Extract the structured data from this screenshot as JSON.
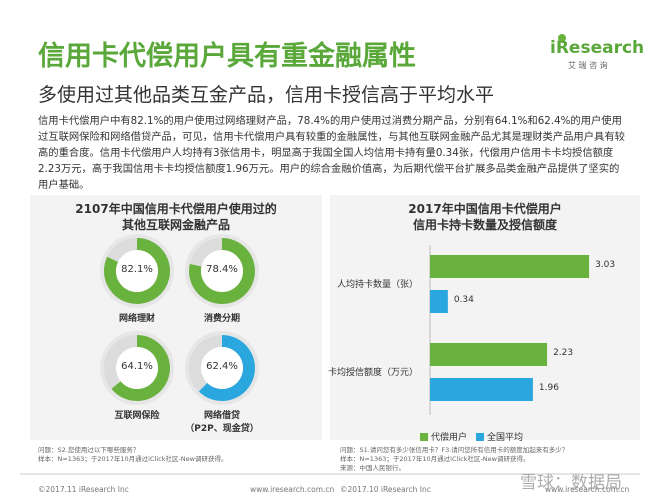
{
  "header": {
    "title": "信用卡代偿用户具有重金融属性",
    "subtitle": "多使用过其他品类互金产品，信用卡授信高于平均水平",
    "logo": "iResearch",
    "logo_cn": "艾 瑞 咨 询"
  },
  "body": "信用卡代偿用户中有82.1%的用户使用过网络理财产品，78.4%的用户使用过消费分期产品，分别有64.1%和62.4%的用户使用过互联网保险和网络借贷产品，可见，信用卡代偿用户具有较重的金融属性，与其他互联网金融产品尤其是理财类产品用户具有较高的重合度。信用卡代偿用户人均持有3张信用卡，明显高于我国全国人均信用卡持有量0.34张，代偿用户信用卡卡均授信额度2.23万元，高于我国信用卡卡均授信额度1.96万元。用户的综合金融价值高，为后期代偿平台扩展多品类金融产品提供了坚实的用户基础。",
  "chart_data": [
    {
      "type": "donut",
      "title": "2107年中国信用卡代偿用户使用过的\n其他互联网金融产品",
      "categories": [
        "网络理财",
        "消费分期",
        "互联网保险",
        "网络借贷\n（P2P、现金贷）"
      ],
      "values": [
        82.1,
        78.4,
        64.1,
        62.4
      ],
      "value_labels": [
        "82.1%",
        "78.4%",
        "64.1%",
        "62.4%"
      ],
      "colors": [
        "#6ab23e",
        "#6ab23e",
        "#6ab23e",
        "#2aa7df"
      ],
      "notes": "问题：S2.您使用过以下哪些服务？\n样本：N=1363；于2017年10月通过iClick社区-New调研获得。"
    },
    {
      "type": "hbar",
      "title": "2017年中国信用卡代偿用户\n信用卡持卡数量及授信额度",
      "categories": [
        "人均持卡数量（张）",
        "卡均授信额度（万元）"
      ],
      "series": [
        {
          "name": "代偿用户",
          "color": "#6ab23e",
          "values": [
            3.03,
            2.23
          ]
        },
        {
          "name": "全国平均",
          "color": "#2aa7df",
          "values": [
            0.34,
            1.96
          ]
        }
      ],
      "xlim": [
        0,
        4
      ],
      "notes": "问题：S1.请问您有多少张信用卡？F3.请问您所有信用卡的额度加起来有多少？\n样本：N=1363；于2017年10月通过iClick社区-New调研获得。\n来源：中国人民银行。"
    }
  ],
  "footer": {
    "left_copyright": "©2017.11 iResearch Inc",
    "left_url": "www.iresearch.com.cn",
    "right_copyright": "©2017.10 iResearch Inc",
    "right_url": "www.iresearch.com.cn",
    "watermark": "雪球：数据局"
  }
}
